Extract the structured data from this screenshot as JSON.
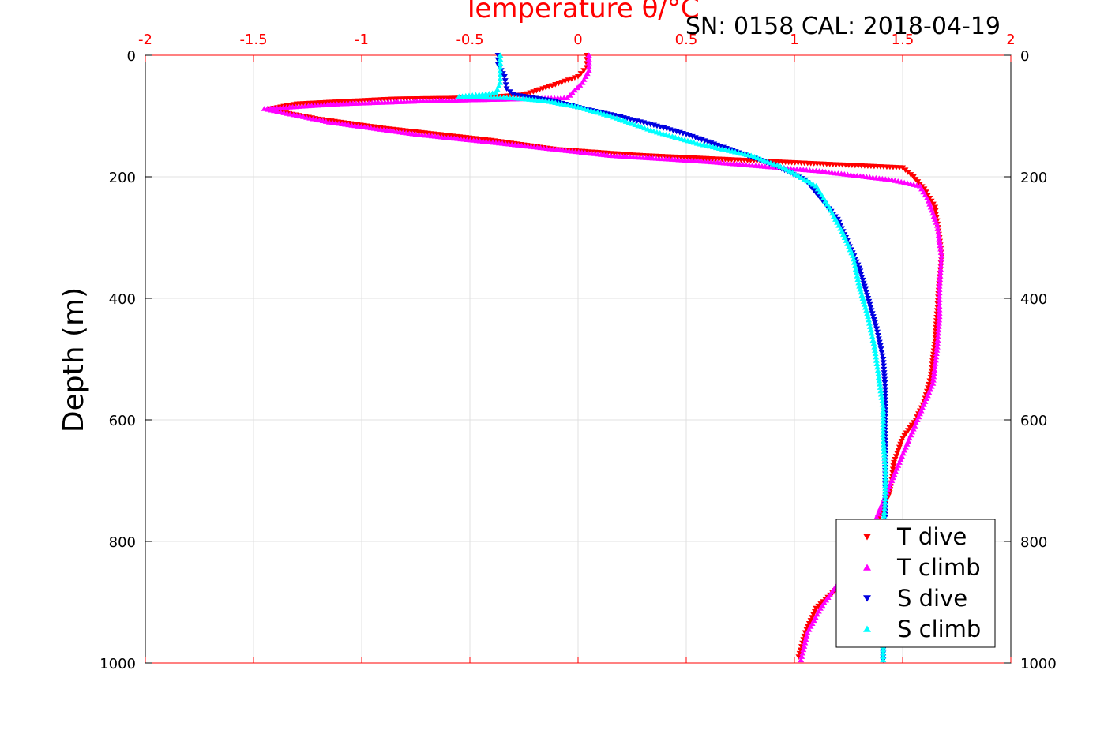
{
  "header": {
    "top_axis_title": "Temperature θ/°C",
    "subtitle": "SN: 0158  CAL: 2018-04-19"
  },
  "colors": {
    "top_axis": "#ff0000",
    "grid": "#e0e0e0",
    "t_dive": "#ff0000",
    "t_climb": "#ff00ff",
    "s_dive": "#0000e0",
    "s_climb": "#00ffff"
  },
  "chart_data": {
    "type": "scatter",
    "ylabel": "Depth (m)",
    "x_top": {
      "label": "Temperature θ/°C",
      "lim": [
        -2,
        2
      ],
      "ticks": [
        -2,
        -1.5,
        -1,
        -0.5,
        0,
        0.5,
        1,
        1.5,
        2
      ],
      "tick_labels": [
        "-2",
        "-1.5",
        "-1",
        "-0.5",
        "0",
        "0.5",
        "1",
        "1.5",
        "2"
      ]
    },
    "ylim": [
      0,
      1000
    ],
    "y_reversed": true,
    "y_ticks": [
      0,
      200,
      400,
      600,
      800,
      1000
    ],
    "y_tick_labels": [
      "0",
      "200",
      "400",
      "600",
      "800",
      "1000"
    ],
    "grid": true,
    "legend_position": "bottom-right",
    "series": [
      {
        "name": "T dive",
        "marker": "triangle-down",
        "color": "#ff0000",
        "points": [
          [
            0.04,
            0
          ],
          [
            0.04,
            20
          ],
          [
            0.0,
            35
          ],
          [
            -0.12,
            50
          ],
          [
            -0.25,
            65
          ],
          [
            -0.45,
            70
          ],
          [
            -0.85,
            72
          ],
          [
            -1.3,
            80
          ],
          [
            -1.42,
            88
          ],
          [
            -1.35,
            95
          ],
          [
            -1.2,
            105
          ],
          [
            -0.9,
            120
          ],
          [
            -0.4,
            140
          ],
          [
            -0.1,
            155
          ],
          [
            0.3,
            165
          ],
          [
            0.9,
            175
          ],
          [
            1.5,
            185
          ],
          [
            1.55,
            200
          ],
          [
            1.6,
            220
          ],
          [
            1.65,
            250
          ],
          [
            1.67,
            300
          ],
          [
            1.68,
            330
          ],
          [
            1.67,
            370
          ],
          [
            1.66,
            420
          ],
          [
            1.65,
            470
          ],
          [
            1.63,
            530
          ],
          [
            1.6,
            570
          ],
          [
            1.56,
            600
          ],
          [
            1.5,
            630
          ],
          [
            1.46,
            670
          ],
          [
            1.44,
            720
          ],
          [
            1.38,
            770
          ],
          [
            1.33,
            820
          ],
          [
            1.22,
            870
          ],
          [
            1.1,
            910
          ],
          [
            1.05,
            950
          ],
          [
            1.02,
            990
          ]
        ]
      },
      {
        "name": "T climb",
        "marker": "triangle-up",
        "color": "#ff00ff",
        "points": [
          [
            0.05,
            0
          ],
          [
            0.05,
            25
          ],
          [
            0.02,
            45
          ],
          [
            -0.05,
            70
          ],
          [
            -0.3,
            72
          ],
          [
            -0.7,
            75
          ],
          [
            -1.1,
            80
          ],
          [
            -1.45,
            88
          ],
          [
            -1.15,
            110
          ],
          [
            -0.75,
            130
          ],
          [
            -0.35,
            145
          ],
          [
            0.15,
            165
          ],
          [
            0.6,
            175
          ],
          [
            1.1,
            190
          ],
          [
            1.45,
            205
          ],
          [
            1.58,
            215
          ],
          [
            1.62,
            240
          ],
          [
            1.66,
            280
          ],
          [
            1.68,
            330
          ],
          [
            1.67,
            380
          ],
          [
            1.67,
            430
          ],
          [
            1.66,
            480
          ],
          [
            1.64,
            540
          ],
          [
            1.58,
            590
          ],
          [
            1.52,
            640
          ],
          [
            1.45,
            700
          ],
          [
            1.38,
            760
          ],
          [
            1.3,
            820
          ],
          [
            1.2,
            870
          ],
          [
            1.12,
            910
          ],
          [
            1.06,
            950
          ],
          [
            1.03,
            995
          ]
        ]
      },
      {
        "name": "S dive",
        "marker": "triangle-down",
        "color": "#0000e0",
        "points": [
          [
            -0.37,
            0
          ],
          [
            -0.37,
            15
          ],
          [
            -0.34,
            35
          ],
          [
            -0.33,
            55
          ],
          [
            -0.3,
            65
          ],
          [
            -0.12,
            75
          ],
          [
            0.05,
            90
          ],
          [
            0.18,
            100
          ],
          [
            0.35,
            115
          ],
          [
            0.5,
            130
          ],
          [
            0.7,
            155
          ],
          [
            0.9,
            180
          ],
          [
            1.05,
            205
          ],
          [
            1.12,
            235
          ],
          [
            1.2,
            270
          ],
          [
            1.25,
            310
          ],
          [
            1.3,
            350
          ],
          [
            1.34,
            400
          ],
          [
            1.38,
            450
          ],
          [
            1.41,
            500
          ],
          [
            1.42,
            550
          ],
          [
            1.42,
            600
          ],
          [
            1.42,
            650
          ],
          [
            1.42,
            700
          ],
          [
            1.42,
            750
          ],
          [
            1.41,
            800
          ],
          [
            1.41,
            850
          ],
          [
            1.41,
            900
          ],
          [
            1.41,
            950
          ],
          [
            1.41,
            995
          ]
        ]
      },
      {
        "name": "S climb",
        "marker": "triangle-up",
        "color": "#00ffff",
        "points": [
          [
            -0.36,
            0
          ],
          [
            -0.36,
            20
          ],
          [
            -0.36,
            45
          ],
          [
            -0.38,
            62
          ],
          [
            -0.55,
            68
          ],
          [
            -0.3,
            70
          ],
          [
            -0.15,
            75
          ],
          [
            0.0,
            85
          ],
          [
            0.15,
            100
          ],
          [
            0.35,
            125
          ],
          [
            0.55,
            145
          ],
          [
            0.8,
            165
          ],
          [
            0.95,
            185
          ],
          [
            1.1,
            215
          ],
          [
            1.16,
            250
          ],
          [
            1.22,
            290
          ],
          [
            1.27,
            330
          ],
          [
            1.3,
            380
          ],
          [
            1.34,
            430
          ],
          [
            1.37,
            480
          ],
          [
            1.39,
            530
          ],
          [
            1.41,
            580
          ],
          [
            1.41,
            630
          ],
          [
            1.42,
            680
          ],
          [
            1.42,
            730
          ],
          [
            1.41,
            780
          ],
          [
            1.41,
            830
          ],
          [
            1.41,
            880
          ],
          [
            1.41,
            930
          ],
          [
            1.41,
            995
          ]
        ]
      }
    ]
  }
}
